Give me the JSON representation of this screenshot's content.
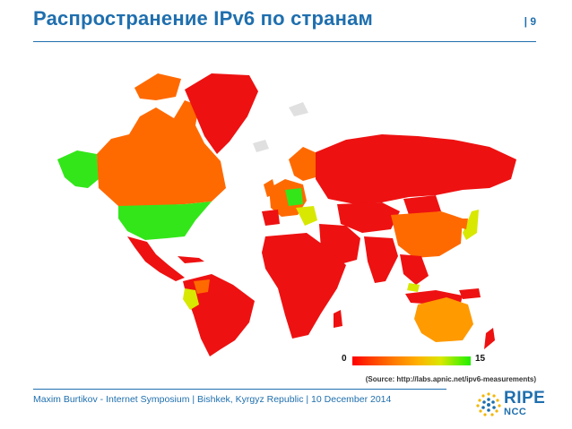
{
  "slide": {
    "title": "Распространение IPv6 по странам",
    "page_number": "| 9"
  },
  "legend": {
    "min_label": "0",
    "max_label": "15",
    "colors": [
      "#ff0000",
      "#ff7a00",
      "#ffb000",
      "#d9e800",
      "#22ee00"
    ]
  },
  "source": "(Source: http://labs.apnic.net/ipv6-measurements)",
  "footer": "Maxim Burtikov - Internet Symposium | Bishkek, Kyrgyz Republic | 10 December 2014",
  "logo": {
    "ripe": "RIPE",
    "ncc": "NCC"
  },
  "map_colors": {
    "high": "#33e61a",
    "mid_high": "#d8e800",
    "mid": "#ff9a00",
    "orange": "#ff6a00",
    "red": "#ee1111",
    "no_data": "#e0e0e0"
  }
}
